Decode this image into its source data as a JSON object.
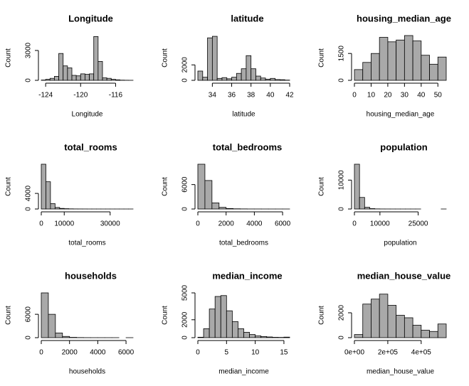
{
  "chart_data": [
    {
      "type": "histogram",
      "title": "Longitude",
      "x_label": "Longitude",
      "y_label": "Count",
      "bins": [
        -124.5,
        -124,
        -123.5,
        -123,
        -122.5,
        -122,
        -121.5,
        -121,
        -120.5,
        -120,
        -119.5,
        -119,
        -118.5,
        -118,
        -117.5,
        -117,
        -116.5,
        -116,
        -115.5,
        -115,
        -114.5,
        -114
      ],
      "counts": [
        30,
        100,
        200,
        400,
        2700,
        1450,
        1250,
        500,
        450,
        650,
        600,
        650,
        4400,
        1900,
        250,
        200,
        100,
        50,
        20,
        10,
        5
      ],
      "xlim": [
        -124.5,
        -114
      ],
      "xticks": [
        -124,
        -120,
        -116
      ],
      "ylim": [
        0,
        4500
      ],
      "yticks": [
        0,
        3000
      ]
    },
    {
      "type": "histogram",
      "title": "latitude",
      "x_label": "latitude",
      "y_label": "Count",
      "bins": [
        32.5,
        33,
        33.5,
        34,
        34.5,
        35,
        35.5,
        36,
        36.5,
        37,
        37.5,
        38,
        38.5,
        39,
        39.5,
        40,
        40.5,
        41,
        41.5,
        42
      ],
      "counts": [
        1200,
        400,
        5500,
        5700,
        250,
        350,
        200,
        400,
        900,
        1500,
        3200,
        1500,
        550,
        300,
        150,
        250,
        100,
        80,
        30
      ],
      "xlim": [
        32.5,
        42
      ],
      "xticks": [
        34,
        36,
        38,
        40,
        42
      ],
      "ylim": [
        0,
        5800
      ],
      "yticks": [
        0,
        2000
      ]
    },
    {
      "type": "histogram",
      "title": "housing_median_age",
      "x_label": "housing_median_age",
      "y_label": "Count",
      "bins": [
        0,
        5,
        10,
        15,
        20,
        25,
        30,
        35,
        40,
        45,
        50,
        55
      ],
      "counts": [
        600,
        1000,
        1500,
        2400,
        2150,
        2250,
        2500,
        2200,
        1400,
        900,
        1300
      ],
      "xlim": [
        0,
        55
      ],
      "xticks": [
        0,
        10,
        20,
        30,
        40,
        50
      ],
      "ylim": [
        0,
        2500
      ],
      "yticks": [
        0,
        1500
      ]
    },
    {
      "type": "histogram",
      "title": "total_rooms",
      "x_label": "total_rooms",
      "y_label": "Count",
      "bins": [
        0,
        2000,
        4000,
        6000,
        8000,
        10000,
        12000,
        14000,
        16000,
        18000,
        20000,
        22000,
        24000,
        26000,
        28000,
        30000,
        32000,
        34000,
        36000,
        38000,
        40000
      ],
      "counts": [
        11500,
        7000,
        1400,
        400,
        150,
        80,
        40,
        20,
        15,
        10,
        5,
        5,
        3,
        2,
        2,
        1,
        1,
        1,
        1,
        1
      ],
      "xlim": [
        0,
        40000
      ],
      "xticks": [
        0,
        10000,
        30000
      ],
      "ylim": [
        0,
        11500
      ],
      "yticks": [
        0,
        4000
      ]
    },
    {
      "type": "histogram",
      "title": "total_bedrooms",
      "x_label": "total_bedrooms",
      "y_label": "Count",
      "bins": [
        0,
        500,
        1000,
        1500,
        2000,
        2500,
        3000,
        3500,
        4000,
        4500,
        5000,
        5500,
        6000,
        6500
      ],
      "counts": [
        11000,
        7000,
        1500,
        400,
        120,
        50,
        25,
        10,
        8,
        4,
        2,
        1,
        1
      ],
      "xlim": [
        0,
        6500
      ],
      "xticks": [
        0,
        2000,
        4000,
        6000
      ],
      "ylim": [
        0,
        11000
      ],
      "yticks": [
        0,
        6000
      ]
    },
    {
      "type": "histogram",
      "title": "population",
      "x_label": "population",
      "y_label": "Count",
      "bins": [
        0,
        2000,
        4000,
        6000,
        8000,
        10000,
        12000,
        14000,
        16000,
        18000,
        20000,
        22000,
        24000,
        26000,
        28000,
        30000,
        32000,
        34000,
        36000
      ],
      "counts": [
        15500,
        4000,
        600,
        130,
        40,
        15,
        8,
        4,
        2,
        1,
        1,
        1,
        1,
        0,
        0,
        0,
        0,
        1
      ],
      "xlim": [
        0,
        36000
      ],
      "xticks": [
        0,
        10000,
        25000
      ],
      "ylim": [
        0,
        15500
      ],
      "yticks": [
        0,
        10000
      ]
    },
    {
      "type": "histogram",
      "title": "households",
      "x_label": "households",
      "y_label": "Count",
      "bins": [
        0,
        500,
        1000,
        1500,
        2000,
        2500,
        3000,
        3500,
        4000,
        4500,
        5000,
        5500,
        6000,
        6500
      ],
      "counts": [
        11500,
        6000,
        1200,
        320,
        80,
        30,
        12,
        5,
        3,
        2,
        1,
        0,
        1
      ],
      "xlim": [
        0,
        6500
      ],
      "xticks": [
        0,
        2000,
        4000,
        6000
      ],
      "ylim": [
        0,
        11500
      ],
      "yticks": [
        0,
        6000
      ]
    },
    {
      "type": "histogram",
      "title": "median_income",
      "x_label": "median_income",
      "y_label": "Count",
      "bins": [
        0,
        1,
        2,
        3,
        4,
        5,
        6,
        7,
        8,
        9,
        10,
        11,
        12,
        13,
        14,
        15,
        16
      ],
      "counts": [
        50,
        1000,
        3200,
        4600,
        4700,
        3000,
        1800,
        1000,
        600,
        350,
        200,
        130,
        80,
        40,
        30,
        60
      ],
      "xlim": [
        0,
        16
      ],
      "xticks": [
        0,
        5,
        10,
        15
      ],
      "ylim": [
        0,
        5000
      ],
      "yticks": [
        0,
        2000,
        5000
      ]
    },
    {
      "type": "histogram",
      "title": "median_house_value",
      "x_label": "median_house_value",
      "y_label": "Count",
      "bins": [
        0,
        50000,
        100000,
        150000,
        200000,
        250000,
        300000,
        350000,
        400000,
        450000,
        500000,
        550000
      ],
      "counts": [
        250,
        2700,
        3100,
        3500,
        2600,
        1800,
        1600,
        1000,
        600,
        500,
        1100
      ],
      "xlim": [
        0,
        550000
      ],
      "xticks": [
        {
          "value": 0,
          "label": "0e+00"
        },
        {
          "value": 200000,
          "label": "2e+05"
        },
        {
          "value": 400000,
          "label": "4e+05"
        }
      ],
      "ylim": [
        0,
        3600
      ],
      "yticks": [
        0,
        2000
      ]
    }
  ]
}
